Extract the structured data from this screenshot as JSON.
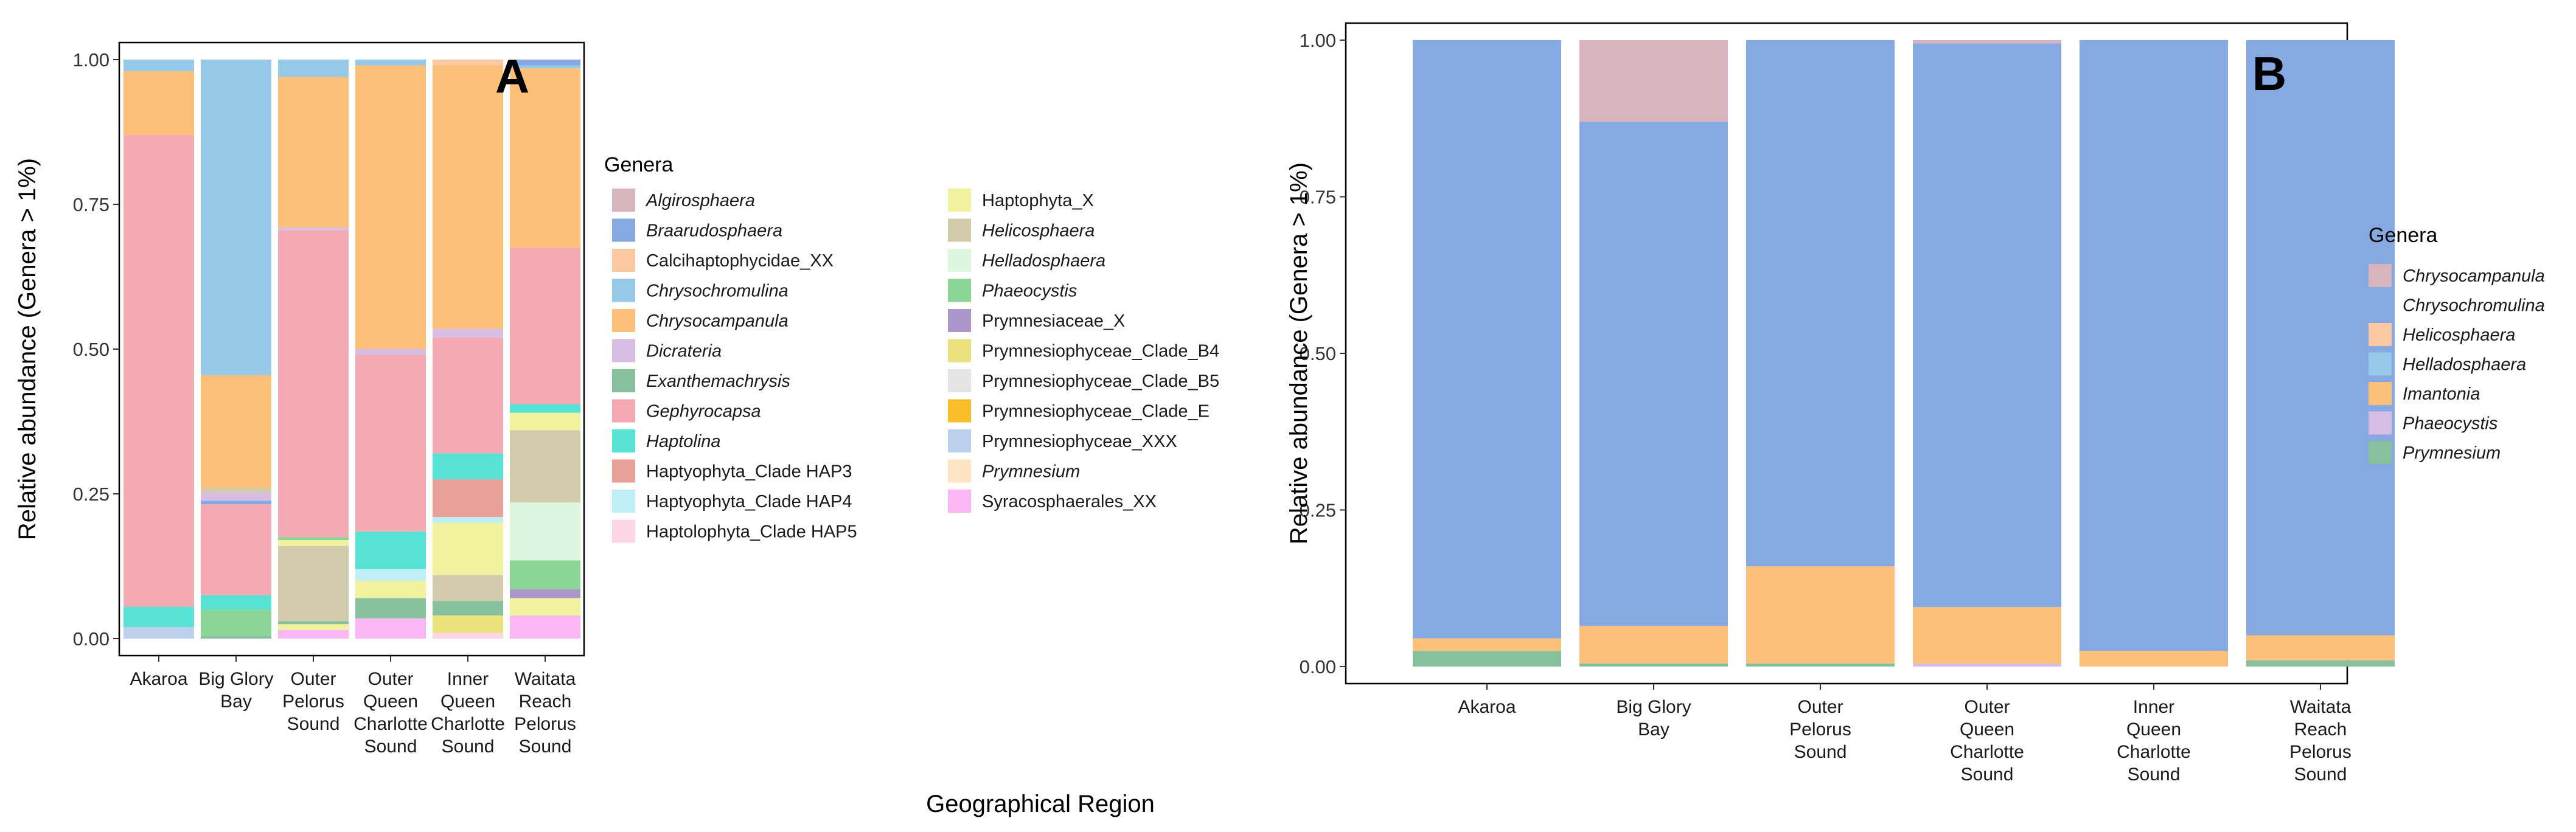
{
  "shared": {
    "xlabel": "Geographical Region",
    "ylabel": "Relative abundance (Genera > 1%)",
    "legend_title": "Genera",
    "y_ticks": [
      "0.00",
      "0.25",
      "0.50",
      "0.75",
      "1.00"
    ]
  },
  "colors": {
    "Algirosphaera": "#d8b4bf",
    "Braarudosphaera": "#87a9e1",
    "Calcihaptophycidae_XX": "#fcc9a3",
    "Chrysochromulina": "#96c9e8",
    "Chrysocampanula": "#fcc078",
    "Dicrateria": "#d7bde3",
    "Exanthemachrysis": "#86c09c",
    "Gephyrocapsa": "#f5a9b2",
    "Haptolina": "#56e2d4",
    "Haptyophyta_Clade HAP3": "#e9a096",
    "Haptyophyta_Clade HAP4": "#bfeff4",
    "Haptolophyta_Clade HAP5": "#fdd6e6",
    "Haptophyta_X": "#f0f29e",
    "Helicosphaera": "#d3ccac",
    "Helladosphaera": "#dcf6df",
    "Phaeocystis": "#8bd696",
    "Prymnesiaceae_X": "#ab96c9",
    "Prymnesiophyceae_Clade_B4": "#ebe27e",
    "Prymnesiophyceae_Clade_B5": "#e4e4e4",
    "Prymnesiophyceae_Clade_E": "#f9be2a",
    "Prymnesiophyceae_XXX": "#bdd1ef",
    "Prymnesium": "#fde5c3",
    "Syracosphaerales_XX": "#fab7f4"
  },
  "colors_b": {
    "Chrysocampanula": "#d8b4bf",
    "Chrysochromulina": "#87a9e1",
    "Helicosphaera": "#fcc9a3",
    "Helladosphaera": "#96c9e8",
    "Imantonia": "#fcc078",
    "Phaeocystis": "#d7bde3",
    "Prymnesium": "#86c09c"
  },
  "chart_data": [
    {
      "panel": "A",
      "type": "bar",
      "stacked": true,
      "categories": [
        [
          "Akaroa"
        ],
        [
          "Big Glory",
          "Bay"
        ],
        [
          "Outer",
          "Pelorus",
          "Sound"
        ],
        [
          "Outer",
          "Queen",
          "Charlotte",
          "Sound"
        ],
        [
          "Inner",
          "Queen",
          "Charlotte",
          "Sound"
        ],
        [
          "Waitata",
          "Reach",
          "Pelorus",
          "Sound"
        ]
      ],
      "ylim": [
        0,
        1
      ],
      "legend": [
        {
          "name": "Algirosphaera",
          "italic": true
        },
        {
          "name": "Braarudosphaera",
          "italic": true
        },
        {
          "name": "Calcihaptophycidae_XX",
          "italic": false
        },
        {
          "name": "Chrysochromulina",
          "italic": true
        },
        {
          "name": "Chrysocampanula",
          "italic": true
        },
        {
          "name": "Dicrateria",
          "italic": true
        },
        {
          "name": "Exanthemachrysis",
          "italic": true
        },
        {
          "name": "Gephyrocapsa",
          "italic": true
        },
        {
          "name": "Haptolina",
          "italic": true
        },
        {
          "name": "Haptyophyta_Clade HAP3",
          "italic": false
        },
        {
          "name": "Haptyophyta_Clade HAP4",
          "italic": false
        },
        {
          "name": "Haptolophyta_Clade HAP5",
          "italic": false
        },
        {
          "name": "Haptophyta_X",
          "italic": false
        },
        {
          "name": "Helicosphaera",
          "italic": true
        },
        {
          "name": "Helladosphaera",
          "italic": true
        },
        {
          "name": "Phaeocystis",
          "italic": true
        },
        {
          "name": "Prymnesiaceae_X",
          "italic": false
        },
        {
          "name": "Prymnesiophyceae_Clade_B4",
          "italic": false
        },
        {
          "name": "Prymnesiophyceae_Clade_B5",
          "italic": false
        },
        {
          "name": "Prymnesiophyceae_Clade_E",
          "italic": false
        },
        {
          "name": "Prymnesiophyceae_XXX",
          "italic": false
        },
        {
          "name": "Prymnesium",
          "italic": true
        },
        {
          "name": "Syracosphaerales_XX",
          "italic": false
        }
      ],
      "bars": [
        [
          {
            "genus": "Prymnesiophyceae_XXX",
            "value": 0.02
          },
          {
            "genus": "Haptolina",
            "value": 0.035
          },
          {
            "genus": "Gephyrocapsa",
            "value": 0.815
          },
          {
            "genus": "Chrysocampanula",
            "value": 0.11
          },
          {
            "genus": "Chrysochromulina",
            "value": 0.02
          }
        ],
        [
          {
            "genus": "Exanthemachrysis",
            "value": 0.005
          },
          {
            "genus": "Phaeocystis",
            "value": 0.045
          },
          {
            "genus": "Haptolina",
            "value": 0.025
          },
          {
            "genus": "Gephyrocapsa",
            "value": 0.157
          },
          {
            "genus": "Braarudosphaera",
            "value": 0.006
          },
          {
            "genus": "Dicrateria",
            "value": 0.014
          },
          {
            "genus": "Helicosphaera",
            "value": 0.008
          },
          {
            "genus": "Chrysocampanula",
            "value": 0.195
          },
          {
            "genus": "Chrysochromulina",
            "value": 0.545
          }
        ],
        [
          {
            "genus": "Syracosphaerales_XX",
            "value": 0.015
          },
          {
            "genus": "Haptophyta_X",
            "value": 0.01
          },
          {
            "genus": "Exanthemachrysis",
            "value": 0.005
          },
          {
            "genus": "Helicosphaera",
            "value": 0.13
          },
          {
            "genus": "Haptophyta_X",
            "value": 0.01
          },
          {
            "genus": "Phaeocystis",
            "value": 0.005
          },
          {
            "genus": "Gephyrocapsa",
            "value": 0.53
          },
          {
            "genus": "Dicrateria",
            "value": 0.005
          },
          {
            "genus": "Chrysocampanula",
            "value": 0.26
          },
          {
            "genus": "Chrysochromulina",
            "value": 0.03
          }
        ],
        [
          {
            "genus": "Syracosphaerales_XX",
            "value": 0.035
          },
          {
            "genus": "Exanthemachrysis",
            "value": 0.035
          },
          {
            "genus": "Haptophyta_X",
            "value": 0.03
          },
          {
            "genus": "Haptyophyta_Clade HAP4",
            "value": 0.02
          },
          {
            "genus": "Haptolina",
            "value": 0.065
          },
          {
            "genus": "Gephyrocapsa",
            "value": 0.305
          },
          {
            "genus": "Dicrateria",
            "value": 0.01
          },
          {
            "genus": "Chrysocampanula",
            "value": 0.49
          },
          {
            "genus": "Chrysochromulina",
            "value": 0.01
          }
        ],
        [
          {
            "genus": "Haptolophyta_Clade HAP5",
            "value": 0.01
          },
          {
            "genus": "Prymnesiophyceae_Clade_B4",
            "value": 0.03
          },
          {
            "genus": "Exanthemachrysis",
            "value": 0.025
          },
          {
            "genus": "Helicosphaera",
            "value": 0.045
          },
          {
            "genus": "Haptophyta_X",
            "value": 0.09
          },
          {
            "genus": "Haptyophyta_Clade HAP4",
            "value": 0.01
          },
          {
            "genus": "Haptyophyta_Clade HAP3",
            "value": 0.065
          },
          {
            "genus": "Haptolina",
            "value": 0.045
          },
          {
            "genus": "Gephyrocapsa",
            "value": 0.2
          },
          {
            "genus": "Dicrateria",
            "value": 0.015
          },
          {
            "genus": "Chrysocampanula",
            "value": 0.455
          },
          {
            "genus": "Calcihaptophycidae_XX",
            "value": 0.01
          }
        ],
        [
          {
            "genus": "Syracosphaerales_XX",
            "value": 0.04
          },
          {
            "genus": "Haptophyta_X",
            "value": 0.03
          },
          {
            "genus": "Prymnesiaceae_X",
            "value": 0.015
          },
          {
            "genus": "Phaeocystis",
            "value": 0.05
          },
          {
            "genus": "Helladosphaera",
            "value": 0.1
          },
          {
            "genus": "Helicosphaera",
            "value": 0.125
          },
          {
            "genus": "Haptophyta_X",
            "value": 0.03
          },
          {
            "genus": "Haptolina",
            "value": 0.015
          },
          {
            "genus": "Gephyrocapsa",
            "value": 0.27
          },
          {
            "genus": "Chrysocampanula",
            "value": 0.31
          },
          {
            "genus": "Chrysochromulina",
            "value": 0.005
          },
          {
            "genus": "Braarudosphaera",
            "value": 0.01
          }
        ]
      ]
    },
    {
      "panel": "B",
      "type": "bar",
      "stacked": true,
      "categories": [
        [
          "Akaroa"
        ],
        [
          "Big Glory",
          "Bay"
        ],
        [
          "Outer",
          "Pelorus",
          "Sound"
        ],
        [
          "Outer",
          "Queen",
          "Charlotte",
          "Sound"
        ],
        [
          "Inner",
          "Queen",
          "Charlotte",
          "Sound"
        ],
        [
          "Waitata",
          "Reach",
          "Pelorus",
          "Sound"
        ]
      ],
      "ylim": [
        0,
        1
      ],
      "legend": [
        {
          "name": "Chrysocampanula",
          "italic": true
        },
        {
          "name": "Chrysochromulina",
          "italic": true
        },
        {
          "name": "Helicosphaera",
          "italic": true
        },
        {
          "name": "Helladosphaera",
          "italic": true
        },
        {
          "name": "Imantonia",
          "italic": true
        },
        {
          "name": "Phaeocystis",
          "italic": true
        },
        {
          "name": "Prymnesium",
          "italic": true
        }
      ],
      "bars": [
        [
          {
            "genus": "Prymnesium",
            "value": 0.025
          },
          {
            "genus": "Imantonia",
            "value": 0.02
          },
          {
            "genus": "Chrysochromulina",
            "value": 0.955
          }
        ],
        [
          {
            "genus": "Prymnesium",
            "value": 0.005
          },
          {
            "genus": "Imantonia",
            "value": 0.06
          },
          {
            "genus": "Chrysochromulina",
            "value": 0.805
          },
          {
            "genus": "Chrysocampanula",
            "value": 0.13
          }
        ],
        [
          {
            "genus": "Prymnesium",
            "value": 0.005
          },
          {
            "genus": "Imantonia",
            "value": 0.155
          },
          {
            "genus": "Chrysochromulina",
            "value": 0.84
          }
        ],
        [
          {
            "genus": "Phaeocystis",
            "value": 0.005
          },
          {
            "genus": "Imantonia",
            "value": 0.09
          },
          {
            "genus": "Chrysochromulina",
            "value": 0.9
          },
          {
            "genus": "Chrysocampanula",
            "value": 0.005
          }
        ],
        [
          {
            "genus": "Imantonia",
            "value": 0.025
          },
          {
            "genus": "Chrysochromulina",
            "value": 0.975
          }
        ],
        [
          {
            "genus": "Prymnesium",
            "value": 0.01
          },
          {
            "genus": "Imantonia",
            "value": 0.04
          },
          {
            "genus": "Chrysochromulina",
            "value": 0.95
          }
        ]
      ]
    }
  ]
}
